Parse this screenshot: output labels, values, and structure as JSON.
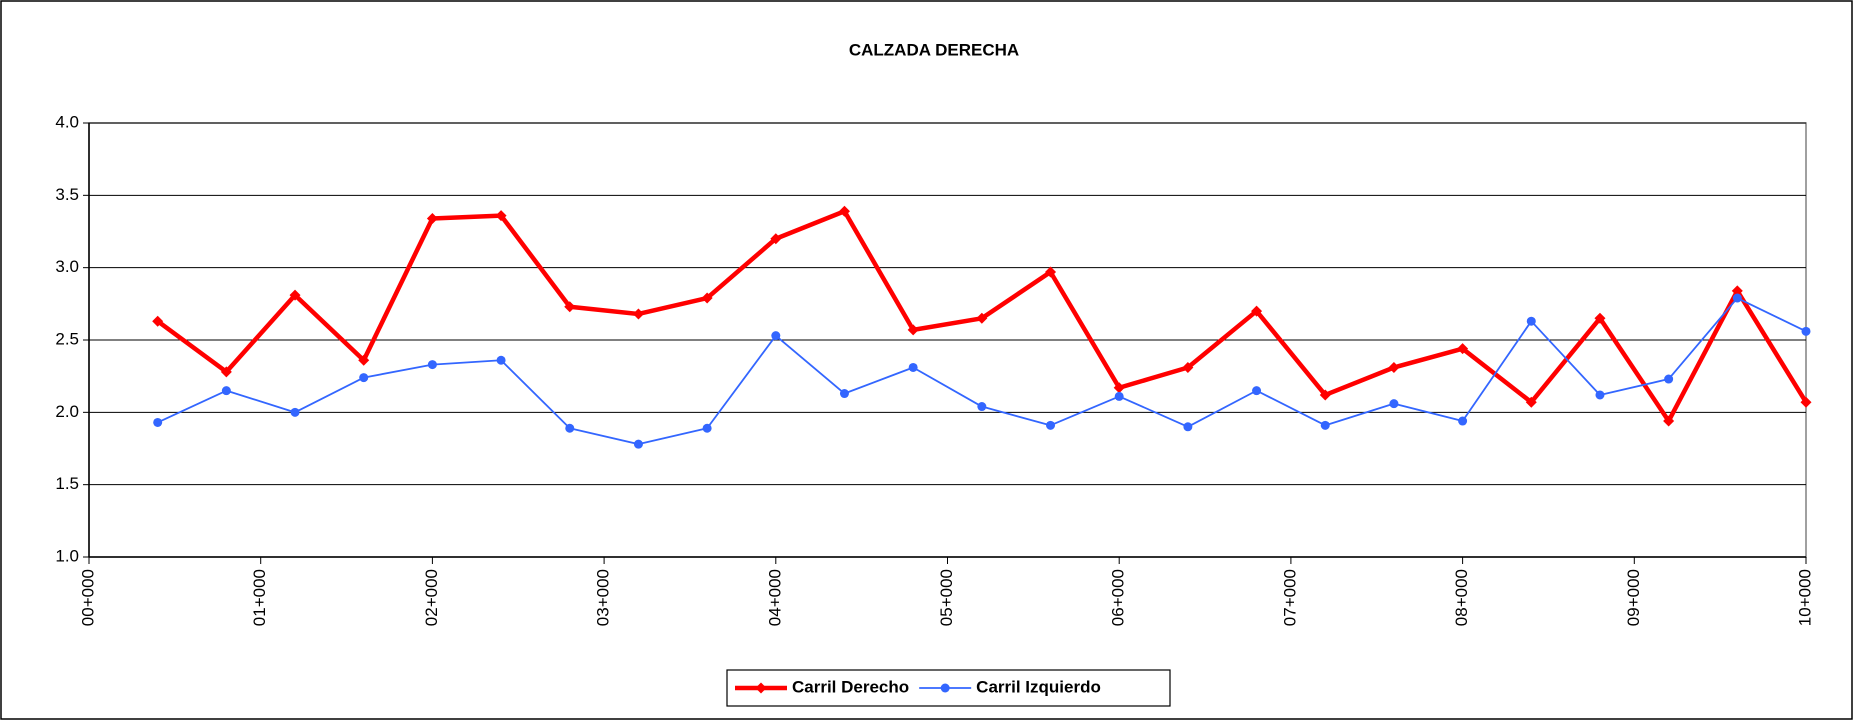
{
  "chart_data": {
    "type": "line",
    "title": "CALZADA DERECHA",
    "x": [
      0.4,
      0.8,
      1.2,
      1.6,
      2.0,
      2.4,
      2.8,
      3.2,
      3.6,
      4.0,
      4.4,
      4.8,
      5.2,
      5.6,
      6.0,
      6.4,
      6.8,
      7.2,
      7.6,
      8.0,
      8.4,
      8.8,
      9.2,
      9.6,
      10.0
    ],
    "series": [
      {
        "name": "Carril Derecho",
        "color": "#ff0000",
        "marker": "diamond",
        "values": [
          2.63,
          2.28,
          2.81,
          2.36,
          3.34,
          3.36,
          2.73,
          2.68,
          2.79,
          3.2,
          3.39,
          2.57,
          2.65,
          2.97,
          2.17,
          2.31,
          2.7,
          2.12,
          2.31,
          2.44,
          2.07,
          2.65,
          1.94,
          2.84,
          2.07
        ]
      },
      {
        "name": "Carril Izquierdo",
        "color": "#3366ff",
        "marker": "circle",
        "values": [
          1.93,
          2.15,
          2.0,
          2.24,
          2.33,
          2.36,
          1.89,
          1.78,
          1.89,
          2.53,
          2.13,
          2.31,
          2.04,
          1.91,
          2.11,
          1.9,
          2.15,
          1.91,
          2.06,
          1.94,
          2.63,
          2.12,
          2.23,
          2.79,
          2.56
        ]
      }
    ],
    "xlim": [
      0,
      10
    ],
    "xticks": [
      {
        "value": 0,
        "label": "00+000"
      },
      {
        "value": 1,
        "label": "01+000"
      },
      {
        "value": 2,
        "label": "02+000"
      },
      {
        "value": 3,
        "label": "03+000"
      },
      {
        "value": 4,
        "label": "04+000"
      },
      {
        "value": 5,
        "label": "05+000"
      },
      {
        "value": 6,
        "label": "06+000"
      },
      {
        "value": 7,
        "label": "07+000"
      },
      {
        "value": 8,
        "label": "08+000"
      },
      {
        "value": 9,
        "label": "09+000"
      },
      {
        "value": 10,
        "label": "10+000"
      }
    ],
    "ylim": [
      1,
      4
    ],
    "yticks": [
      {
        "value": 1,
        "label": "1.0"
      },
      {
        "value": 1.5,
        "label": "1.5"
      },
      {
        "value": 2,
        "label": "2.0"
      },
      {
        "value": 2.5,
        "label": "2.5"
      },
      {
        "value": 3,
        "label": "3.0"
      },
      {
        "value": 3.5,
        "label": "3.5"
      },
      {
        "value": 4,
        "label": "4.0"
      }
    ],
    "grid": true,
    "legend": "bottom"
  }
}
